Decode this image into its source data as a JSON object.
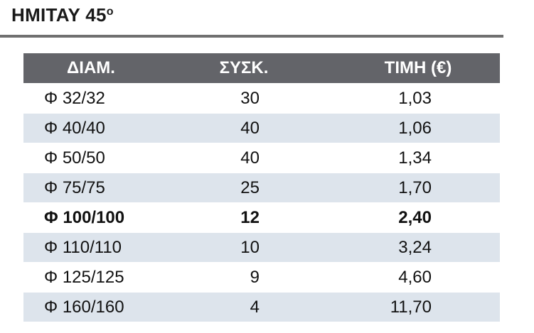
{
  "document": {
    "title_main": "HMITAY  45",
    "title_degree": "o"
  },
  "table": {
    "headers": [
      "ΔΙΑΜ.",
      "ΣΥΣΚ.",
      "ΤΙΜΗ (€)"
    ],
    "rows": [
      {
        "diameter": "Φ 32/32",
        "package": "30",
        "price": "1,03",
        "bold": false
      },
      {
        "diameter": "Φ 40/40",
        "package": "40",
        "price": "1,06",
        "bold": false
      },
      {
        "diameter": "Φ 50/50",
        "package": "40",
        "price": "1,34",
        "bold": false
      },
      {
        "diameter": "Φ 75/75",
        "package": "25",
        "price": "1,70",
        "bold": false
      },
      {
        "diameter": "Φ 100/100",
        "package": "12",
        "price": "2,40",
        "bold": true
      },
      {
        "diameter": "Φ 110/110",
        "package": "10",
        "price": "3,24",
        "bold": false
      },
      {
        "diameter": "Φ 125/125",
        "package": "9",
        "price": "4,60",
        "bold": false
      },
      {
        "diameter": "Φ 160/160",
        "package": "4",
        "price": "11,70",
        "bold": false
      }
    ]
  },
  "colors": {
    "header_bg": "#636469",
    "header_text": "#ffffff",
    "stripe_bg": "#dde4ec",
    "rule": "#707070"
  }
}
